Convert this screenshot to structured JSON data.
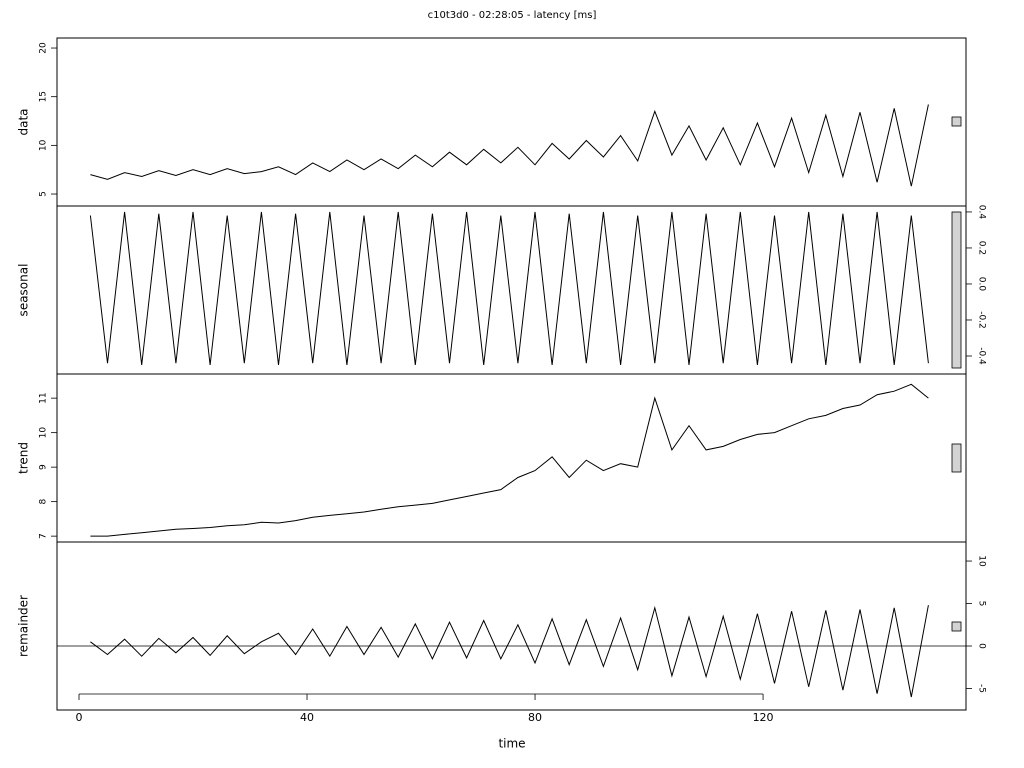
{
  "chart_data": {
    "type": "line",
    "title": "c10t3d0 - 02:28:05 - latency [ms]",
    "xlabel": "time",
    "xlim": [
      -3.86,
      155.6
    ],
    "xticks": [
      0,
      40,
      80,
      120
    ],
    "color": "#000000",
    "x": [
      2,
      5,
      8,
      11,
      14,
      17,
      20,
      23,
      26,
      29,
      32,
      35,
      38,
      41,
      44,
      47,
      50,
      53,
      56,
      59,
      62,
      65,
      68,
      71,
      74,
      77,
      80,
      83,
      86,
      89,
      92,
      95,
      98,
      101,
      104,
      107,
      110,
      113,
      116,
      119,
      122,
      125,
      128,
      131,
      134,
      137,
      140,
      143,
      146,
      149
    ],
    "panels": [
      {
        "label": "data",
        "side": "left",
        "ylim": [
          3.77,
          21.03
        ],
        "yticks": [
          5,
          10,
          15,
          20
        ],
        "values": [
          7.0,
          6.5,
          7.2,
          6.8,
          7.4,
          6.9,
          7.5,
          7.0,
          7.6,
          7.1,
          7.3,
          7.8,
          7.0,
          8.2,
          7.3,
          8.5,
          7.5,
          8.6,
          7.6,
          9.0,
          7.8,
          9.3,
          8.0,
          9.6,
          8.2,
          9.8,
          8.0,
          10.2,
          8.6,
          10.5,
          8.8,
          11.0,
          8.4,
          13.5,
          9.0,
          12.0,
          8.5,
          11.8,
          8.0,
          12.3,
          7.8,
          12.8,
          7.2,
          13.1,
          6.8,
          13.4,
          6.2,
          13.8,
          5.8,
          14.2
        ]
      },
      {
        "label": "seasonal",
        "side": "right",
        "ylim": [
          -0.5,
          0.433
        ],
        "yticks": [
          -0.4,
          -0.2,
          {
            "value": 0,
            "label": "0.0"
          },
          0.2,
          0.4
        ],
        "values": [
          0.38,
          -0.44,
          0.4,
          -0.45,
          0.39,
          -0.44,
          0.4,
          -0.45,
          0.38,
          -0.44,
          0.4,
          -0.45,
          0.39,
          -0.44,
          0.4,
          -0.45,
          0.38,
          -0.44,
          0.4,
          -0.45,
          0.39,
          -0.44,
          0.4,
          -0.45,
          0.38,
          -0.44,
          0.4,
          -0.45,
          0.39,
          -0.44,
          0.4,
          -0.45,
          0.38,
          -0.44,
          0.4,
          -0.45,
          0.39,
          -0.44,
          0.4,
          -0.45,
          0.38,
          -0.44,
          0.4,
          -0.45,
          0.39,
          -0.44,
          0.4,
          -0.45,
          0.38,
          -0.44
        ]
      },
      {
        "label": "trend",
        "side": "left",
        "ylim": [
          6.83,
          11.7
        ],
        "yticks": [
          7,
          8,
          9,
          10,
          11
        ],
        "values": [
          7.0,
          7.0,
          7.05,
          7.1,
          7.15,
          7.2,
          7.22,
          7.25,
          7.3,
          7.33,
          7.4,
          7.38,
          7.45,
          7.55,
          7.6,
          7.65,
          7.7,
          7.78,
          7.85,
          7.9,
          7.95,
          8.05,
          8.15,
          8.25,
          8.35,
          8.7,
          8.9,
          9.3,
          8.7,
          9.2,
          8.9,
          9.1,
          9.0,
          11.0,
          9.5,
          10.2,
          9.5,
          9.6,
          9.8,
          9.95,
          10.0,
          10.2,
          10.4,
          10.5,
          10.7,
          10.8,
          11.1,
          11.2,
          11.4,
          11.0
        ]
      },
      {
        "label": "remainder",
        "side": "right",
        "ylim": [
          -7.53,
          12.24
        ],
        "yticks": [
          -5,
          0,
          5,
          10
        ],
        "values": [
          0.5,
          -1,
          0.8,
          -1.2,
          0.9,
          -0.8,
          1,
          -1.1,
          1.2,
          -0.9,
          0.5,
          1.5,
          -1,
          2,
          -1.2,
          2.3,
          -1,
          2.2,
          -1.3,
          2.6,
          -1.5,
          2.8,
          -1.4,
          3,
          -1.5,
          2.5,
          -2,
          3.2,
          -2.2,
          3.1,
          -2.4,
          3.3,
          -2.8,
          4.5,
          -3.5,
          3.4,
          -3.6,
          3.5,
          -3.9,
          3.8,
          -4.4,
          4.1,
          -4.8,
          4.2,
          -5.2,
          4.3,
          -5.6,
          4.5,
          -6,
          4.8
        ]
      }
    ]
  }
}
